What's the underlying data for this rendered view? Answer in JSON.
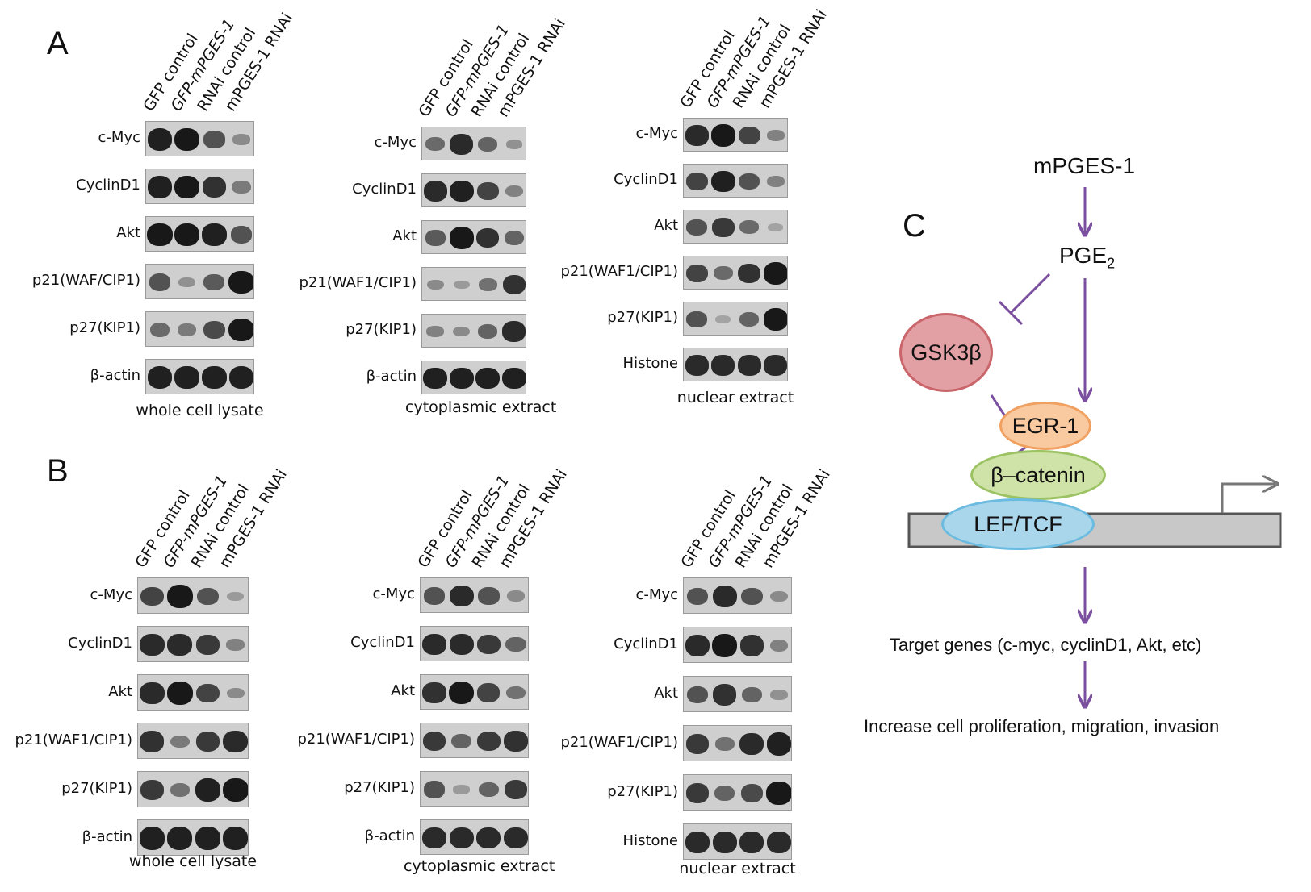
{
  "panel_labels": {
    "a": "A",
    "b": "B",
    "c": "C"
  },
  "lanes": [
    "GFP control",
    "GFP-mPGES-1",
    "RNAi control",
    "mPGES-1 RNAi"
  ],
  "blots": {
    "A_whole": {
      "caption": "whole cell lysate",
      "rows": [
        {
          "label": "c-Myc",
          "intensity": [
            0.9,
            0.95,
            0.6,
            0.25
          ]
        },
        {
          "label": "CyclinD1",
          "intensity": [
            0.9,
            0.95,
            0.8,
            0.35
          ]
        },
        {
          "label": "Akt",
          "intensity": [
            0.95,
            0.95,
            0.9,
            0.6
          ]
        },
        {
          "label": "p21(WAF/CIP1)",
          "intensity": [
            0.6,
            0.2,
            0.55,
            0.95
          ]
        },
        {
          "label": "p27(KIP1)",
          "intensity": [
            0.45,
            0.35,
            0.65,
            0.95
          ]
        },
        {
          "label": "β-actin",
          "intensity": [
            0.9,
            0.9,
            0.9,
            0.9
          ]
        }
      ]
    },
    "A_cyto": {
      "caption": "cytoplasmic extract",
      "rows": [
        {
          "label": "c-Myc",
          "intensity": [
            0.45,
            0.85,
            0.5,
            0.2
          ]
        },
        {
          "label": "CyclinD1",
          "intensity": [
            0.85,
            0.9,
            0.7,
            0.3
          ]
        },
        {
          "label": "Akt",
          "intensity": [
            0.55,
            0.95,
            0.8,
            0.5
          ]
        },
        {
          "label": "p21(WAF1/CIP1)",
          "intensity": [
            0.25,
            0.15,
            0.4,
            0.8
          ]
        },
        {
          "label": "p27(KIP1)",
          "intensity": [
            0.3,
            0.25,
            0.5,
            0.85
          ]
        },
        {
          "label": "β-actin",
          "intensity": [
            0.9,
            0.9,
            0.9,
            0.9
          ]
        }
      ]
    },
    "A_nuc": {
      "caption": "nuclear extract",
      "rows": [
        {
          "label": "c-Myc",
          "intensity": [
            0.85,
            0.95,
            0.7,
            0.3
          ]
        },
        {
          "label": "CyclinD1",
          "intensity": [
            0.7,
            0.9,
            0.6,
            0.3
          ]
        },
        {
          "label": "Akt",
          "intensity": [
            0.6,
            0.75,
            0.45,
            0.1
          ]
        },
        {
          "label": "p21(WAF1/CIP1)",
          "intensity": [
            0.7,
            0.45,
            0.8,
            0.95
          ]
        },
        {
          "label": "p27(KIP1)",
          "intensity": [
            0.6,
            0.1,
            0.5,
            0.95
          ]
        },
        {
          "label": "Histone",
          "intensity": [
            0.85,
            0.85,
            0.85,
            0.85
          ]
        }
      ]
    },
    "B_whole": {
      "caption": "whole cell lysate",
      "rows": [
        {
          "label": "c-Myc",
          "intensity": [
            0.7,
            0.95,
            0.6,
            0.15
          ]
        },
        {
          "label": "CyclinD1",
          "intensity": [
            0.85,
            0.85,
            0.75,
            0.3
          ]
        },
        {
          "label": "Akt",
          "intensity": [
            0.85,
            0.95,
            0.7,
            0.25
          ]
        },
        {
          "label": "p21(WAF1/CIP1)",
          "intensity": [
            0.8,
            0.35,
            0.75,
            0.85
          ]
        },
        {
          "label": "p27(KIP1)",
          "intensity": [
            0.75,
            0.4,
            0.9,
            0.95
          ]
        },
        {
          "label": "β-actin",
          "intensity": [
            0.9,
            0.9,
            0.9,
            0.9
          ]
        }
      ]
    },
    "B_cyto": {
      "caption": "cytoplasmic extract",
      "rows": [
        {
          "label": "c-Myc",
          "intensity": [
            0.6,
            0.85,
            0.6,
            0.25
          ]
        },
        {
          "label": "CyclinD1",
          "intensity": [
            0.85,
            0.85,
            0.75,
            0.5
          ]
        },
        {
          "label": "Akt",
          "intensity": [
            0.8,
            0.95,
            0.7,
            0.4
          ]
        },
        {
          "label": "p21(WAF1/CIP1)",
          "intensity": [
            0.75,
            0.5,
            0.75,
            0.8
          ]
        },
        {
          "label": "p27(KIP1)",
          "intensity": [
            0.6,
            0.15,
            0.5,
            0.75
          ]
        },
        {
          "label": "β-actin",
          "intensity": [
            0.85,
            0.85,
            0.85,
            0.85
          ]
        }
      ]
    },
    "B_nuc": {
      "caption": "nuclear extract",
      "rows": [
        {
          "label": "c-Myc",
          "intensity": [
            0.6,
            0.85,
            0.6,
            0.25
          ]
        },
        {
          "label": "CyclinD1",
          "intensity": [
            0.85,
            0.95,
            0.8,
            0.3
          ]
        },
        {
          "label": "Akt",
          "intensity": [
            0.6,
            0.8,
            0.5,
            0.2
          ]
        },
        {
          "label": "p21(WAF1/CIP1)",
          "intensity": [
            0.75,
            0.4,
            0.85,
            0.9
          ]
        },
        {
          "label": "p27(KIP1)",
          "intensity": [
            0.75,
            0.5,
            0.65,
            0.95
          ]
        },
        {
          "label": "Histone",
          "intensity": [
            0.85,
            0.85,
            0.85,
            0.85
          ]
        }
      ]
    }
  },
  "pathway": {
    "mpges1": "mPGES-1",
    "pge2": "PGE",
    "pge2_sub": "2",
    "gsk3b": "GSK3β",
    "egr1": "EGR-1",
    "bcatenin": "β–catenin",
    "leftcf": "LEF/TCF",
    "targets": "Target genes (c-myc, cyclinD1, Akt, etc)",
    "outcome": "Increase cell proliferation, migration, invasion",
    "colors": {
      "arrow": "#7b4fa0",
      "gsk3b_fill": "#e2a0a4",
      "gsk3b_stroke": "#c9656b",
      "egr1_fill": "#f9c9a0",
      "egr1_stroke": "#f0a060",
      "bcatenin_fill": "#cfe2a8",
      "bcatenin_stroke": "#9cc363",
      "leftcf_fill": "#a9d6ea",
      "leftcf_stroke": "#6bbbe0",
      "dna_fill": "#c8c8c8",
      "dna_stroke": "#555555"
    }
  }
}
